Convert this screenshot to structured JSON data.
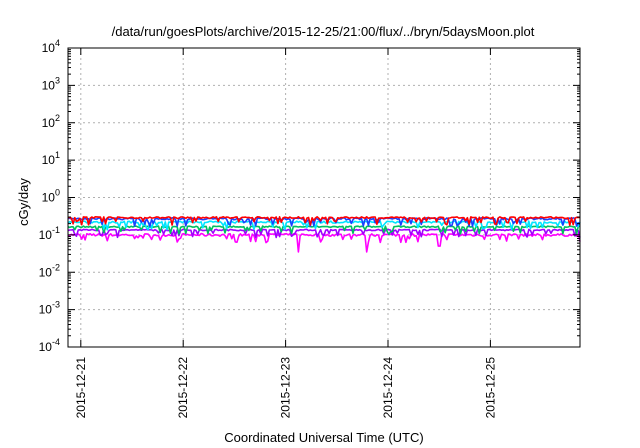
{
  "chart_data": {
    "type": "line",
    "title": "/data/run/goesPlots/archive/2015-12-25/21:00/flux/../bryn/5daysMoon.plot",
    "xlabel": "Coordinated Universal Time (UTC)",
    "ylabel": "cGy/day",
    "yscale": "log",
    "ylim": [
      0.0001,
      10000
    ],
    "ytick_labels": [
      {
        "base": "10",
        "exp": "-4",
        "value": 0.0001
      },
      {
        "base": "10",
        "exp": "-3",
        "value": 0.001
      },
      {
        "base": "10",
        "exp": "-2",
        "value": 0.01
      },
      {
        "base": "10",
        "exp": "-1",
        "value": 0.1
      },
      {
        "base": "10",
        "exp": "0",
        "value": 1
      },
      {
        "base": "10",
        "exp": "1",
        "value": 10
      },
      {
        "base": "10",
        "exp": "2",
        "value": 100
      },
      {
        "base": "10",
        "exp": "3",
        "value": 1000
      },
      {
        "base": "10",
        "exp": "4",
        "value": 10000
      }
    ],
    "xlim": [
      "2015-12-20T21:00",
      "2015-12-25T21:00"
    ],
    "xtick_labels": [
      "2015-12-21",
      "2015-12-22",
      "2015-12-23",
      "2015-12-24",
      "2015-12-25"
    ],
    "grid": true,
    "series": [
      {
        "color": "#ff0000",
        "level": 0.29,
        "spread": 0.1,
        "dips": []
      },
      {
        "color": "#1a40ff",
        "level": 0.27,
        "spread": 0.12,
        "dips": []
      },
      {
        "color": "#00e5ff",
        "level": 0.22,
        "spread": 0.12,
        "dips": []
      },
      {
        "color": "#00c060",
        "level": 0.165,
        "spread": 0.08,
        "dips": []
      },
      {
        "color": "#a000ff",
        "level": 0.135,
        "spread": 0.08,
        "dips": []
      },
      {
        "color": "#ff00ff",
        "level": 0.1,
        "spread": 0.16,
        "dips": [
          [
            "2015-12-23T03:00",
            0.035
          ],
          [
            "2015-12-23T19:00",
            0.035
          ],
          [
            "2015-12-24T12:00",
            0.05
          ]
        ]
      }
    ]
  }
}
